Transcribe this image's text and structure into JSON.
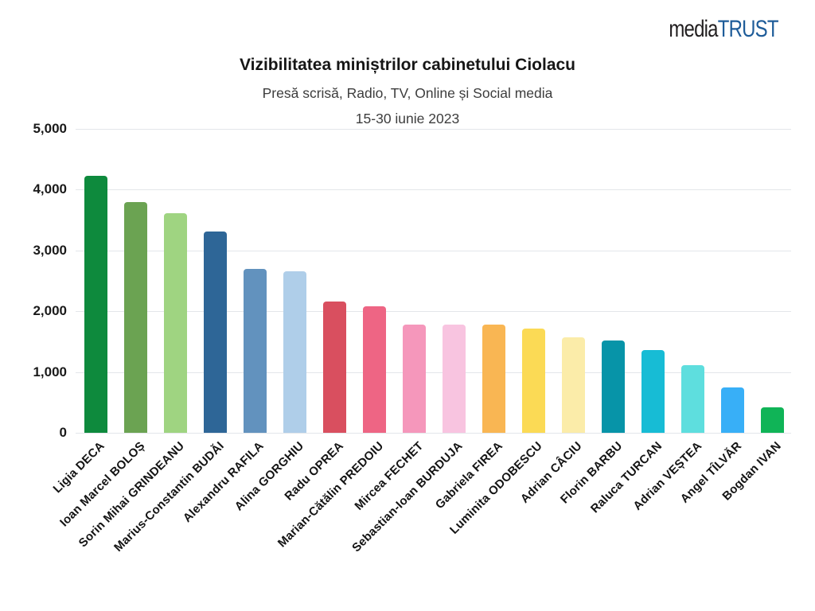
{
  "logo": {
    "prefix": "media",
    "suffix": "TRUST",
    "prefix_color": "#221f20",
    "suffix_color": "#1e5c99"
  },
  "header": {
    "title": "Vizibilitatea miniștrilor cabinetului Ciolacu",
    "subtitle": "Presă scrisă, Radio, TV, Online și Social media",
    "period": "15-30 iunie 2023"
  },
  "chart_data": {
    "type": "bar",
    "title": "Vizibilitatea miniștrilor cabinetului Ciolacu",
    "subtitle": "Presă scrisă, Radio, TV, Online și Social media",
    "period": "15-30 iunie 2023",
    "categories": [
      "Ligia DECA",
      "Ioan Marcel BOLOȘ",
      "Sorin Mihai GRINDEANU",
      "Marius-Constantin BUDĂI",
      "Alexandru RAFILA",
      "Alina GORGHIU",
      "Radu OPREA",
      "Marian-Cătălin PREDOIU",
      "Mircea FECHET",
      "Sebastian-Ioan BURDUJA",
      "Gabriela FIREA",
      "Luminita ODOBESCU",
      "Adrian CÂCIU",
      "Florin BARBU",
      "Raluca TURCAN",
      "Adrian VEȘTEA",
      "Angel TÎLVĂR",
      "Bogdan IVAN"
    ],
    "values": [
      4230,
      3790,
      3610,
      3310,
      2700,
      2660,
      2160,
      2080,
      1780,
      1780,
      1780,
      1710,
      1570,
      1520,
      1360,
      1110,
      750,
      420
    ],
    "bar_colors": [
      "#0e8a3d",
      "#6ba352",
      "#9fd481",
      "#2e6697",
      "#6292be",
      "#afcee9",
      "#d94f5f",
      "#ee6584",
      "#f597bb",
      "#f8c4e0",
      "#f9b653",
      "#fbda55",
      "#fbeca9",
      "#0794a8",
      "#17bcd5",
      "#5edede",
      "#38aff7",
      "#10b457"
    ],
    "xlabel": "",
    "ylabel": "",
    "ylim": [
      0,
      5000
    ],
    "ytick_interval": 1000,
    "ytick_labels": [
      "0",
      "1,000",
      "2,000",
      "3,000",
      "4,000",
      "5,000"
    ],
    "grid": true,
    "legend": "none",
    "x_label_rotation_deg": -45,
    "gridline_color": "#e3e6ea"
  }
}
